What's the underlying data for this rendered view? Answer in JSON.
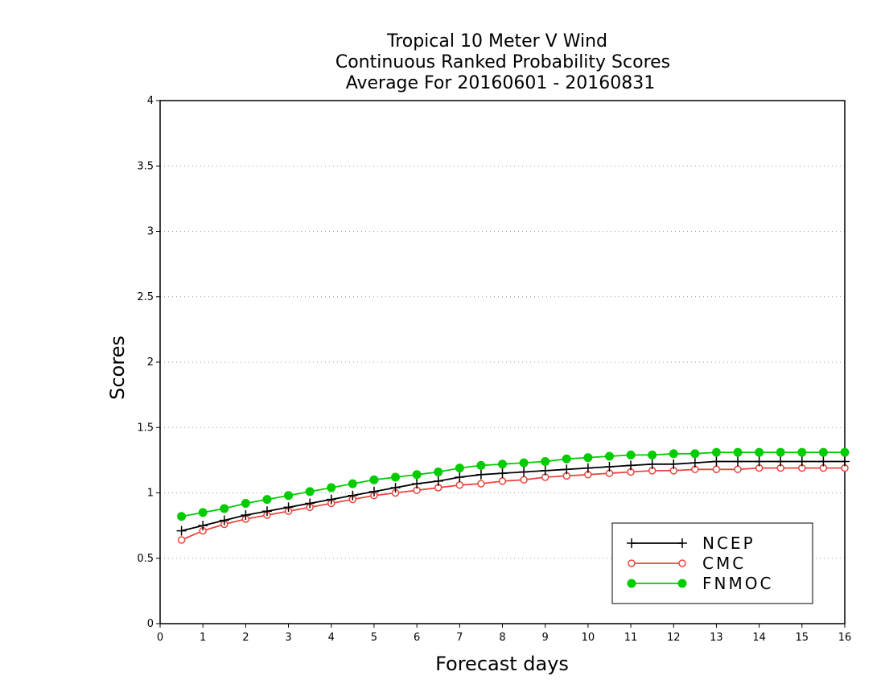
{
  "chart_data": {
    "type": "line",
    "title_lines": [
      "Tropical 10 Meter V Wind",
      "Continuous Ranked Probability Scores",
      "Average For 20160601 - 20160831"
    ],
    "xlabel": "Forecast days",
    "ylabel": "Scores",
    "xlim": [
      0,
      16
    ],
    "ylim": [
      0,
      4
    ],
    "xticks": [
      "0",
      "1",
      "2",
      "3",
      "4",
      "5",
      "6",
      "7",
      "8",
      "9",
      "10",
      "11",
      "12",
      "13",
      "14",
      "15",
      "16"
    ],
    "yticks": [
      "0",
      "0.5",
      "1",
      "1.5",
      "2",
      "2.5",
      "3",
      "3.5",
      "4"
    ],
    "grid": "horizontal dotted",
    "legend_position": "bottom-right",
    "x": [
      0.5,
      1,
      1.5,
      2,
      2.5,
      3,
      3.5,
      4,
      4.5,
      5,
      5.5,
      6,
      6.5,
      7,
      7.5,
      8,
      8.5,
      9,
      9.5,
      10,
      10.5,
      11,
      11.5,
      12,
      12.5,
      13,
      13.5,
      14,
      14.5,
      15,
      15.5,
      16
    ],
    "series": [
      {
        "name": "NCEP",
        "color": "#000000",
        "marker": "plus",
        "values": [
          0.71,
          0.75,
          0.79,
          0.83,
          0.86,
          0.89,
          0.92,
          0.95,
          0.98,
          1.01,
          1.04,
          1.07,
          1.09,
          1.12,
          1.14,
          1.15,
          1.16,
          1.17,
          1.18,
          1.19,
          1.2,
          1.21,
          1.22,
          1.22,
          1.23,
          1.24,
          1.24,
          1.24,
          1.24,
          1.24,
          1.24,
          1.24
        ]
      },
      {
        "name": "CMC",
        "color": "#e8463f",
        "marker": "open-circle",
        "values": [
          0.64,
          0.71,
          0.76,
          0.8,
          0.83,
          0.86,
          0.89,
          0.92,
          0.95,
          0.98,
          1.0,
          1.02,
          1.04,
          1.06,
          1.07,
          1.09,
          1.1,
          1.12,
          1.13,
          1.14,
          1.15,
          1.16,
          1.17,
          1.17,
          1.18,
          1.18,
          1.18,
          1.19,
          1.19,
          1.19,
          1.19,
          1.19
        ]
      },
      {
        "name": "FNMOC",
        "color": "#00cc00",
        "marker": "filled-circle",
        "values": [
          0.82,
          0.85,
          0.88,
          0.92,
          0.95,
          0.98,
          1.01,
          1.04,
          1.07,
          1.1,
          1.12,
          1.14,
          1.16,
          1.19,
          1.21,
          1.22,
          1.23,
          1.24,
          1.26,
          1.27,
          1.28,
          1.29,
          1.29,
          1.3,
          1.3,
          1.31,
          1.31,
          1.31,
          1.31,
          1.31,
          1.31,
          1.31
        ]
      }
    ]
  }
}
